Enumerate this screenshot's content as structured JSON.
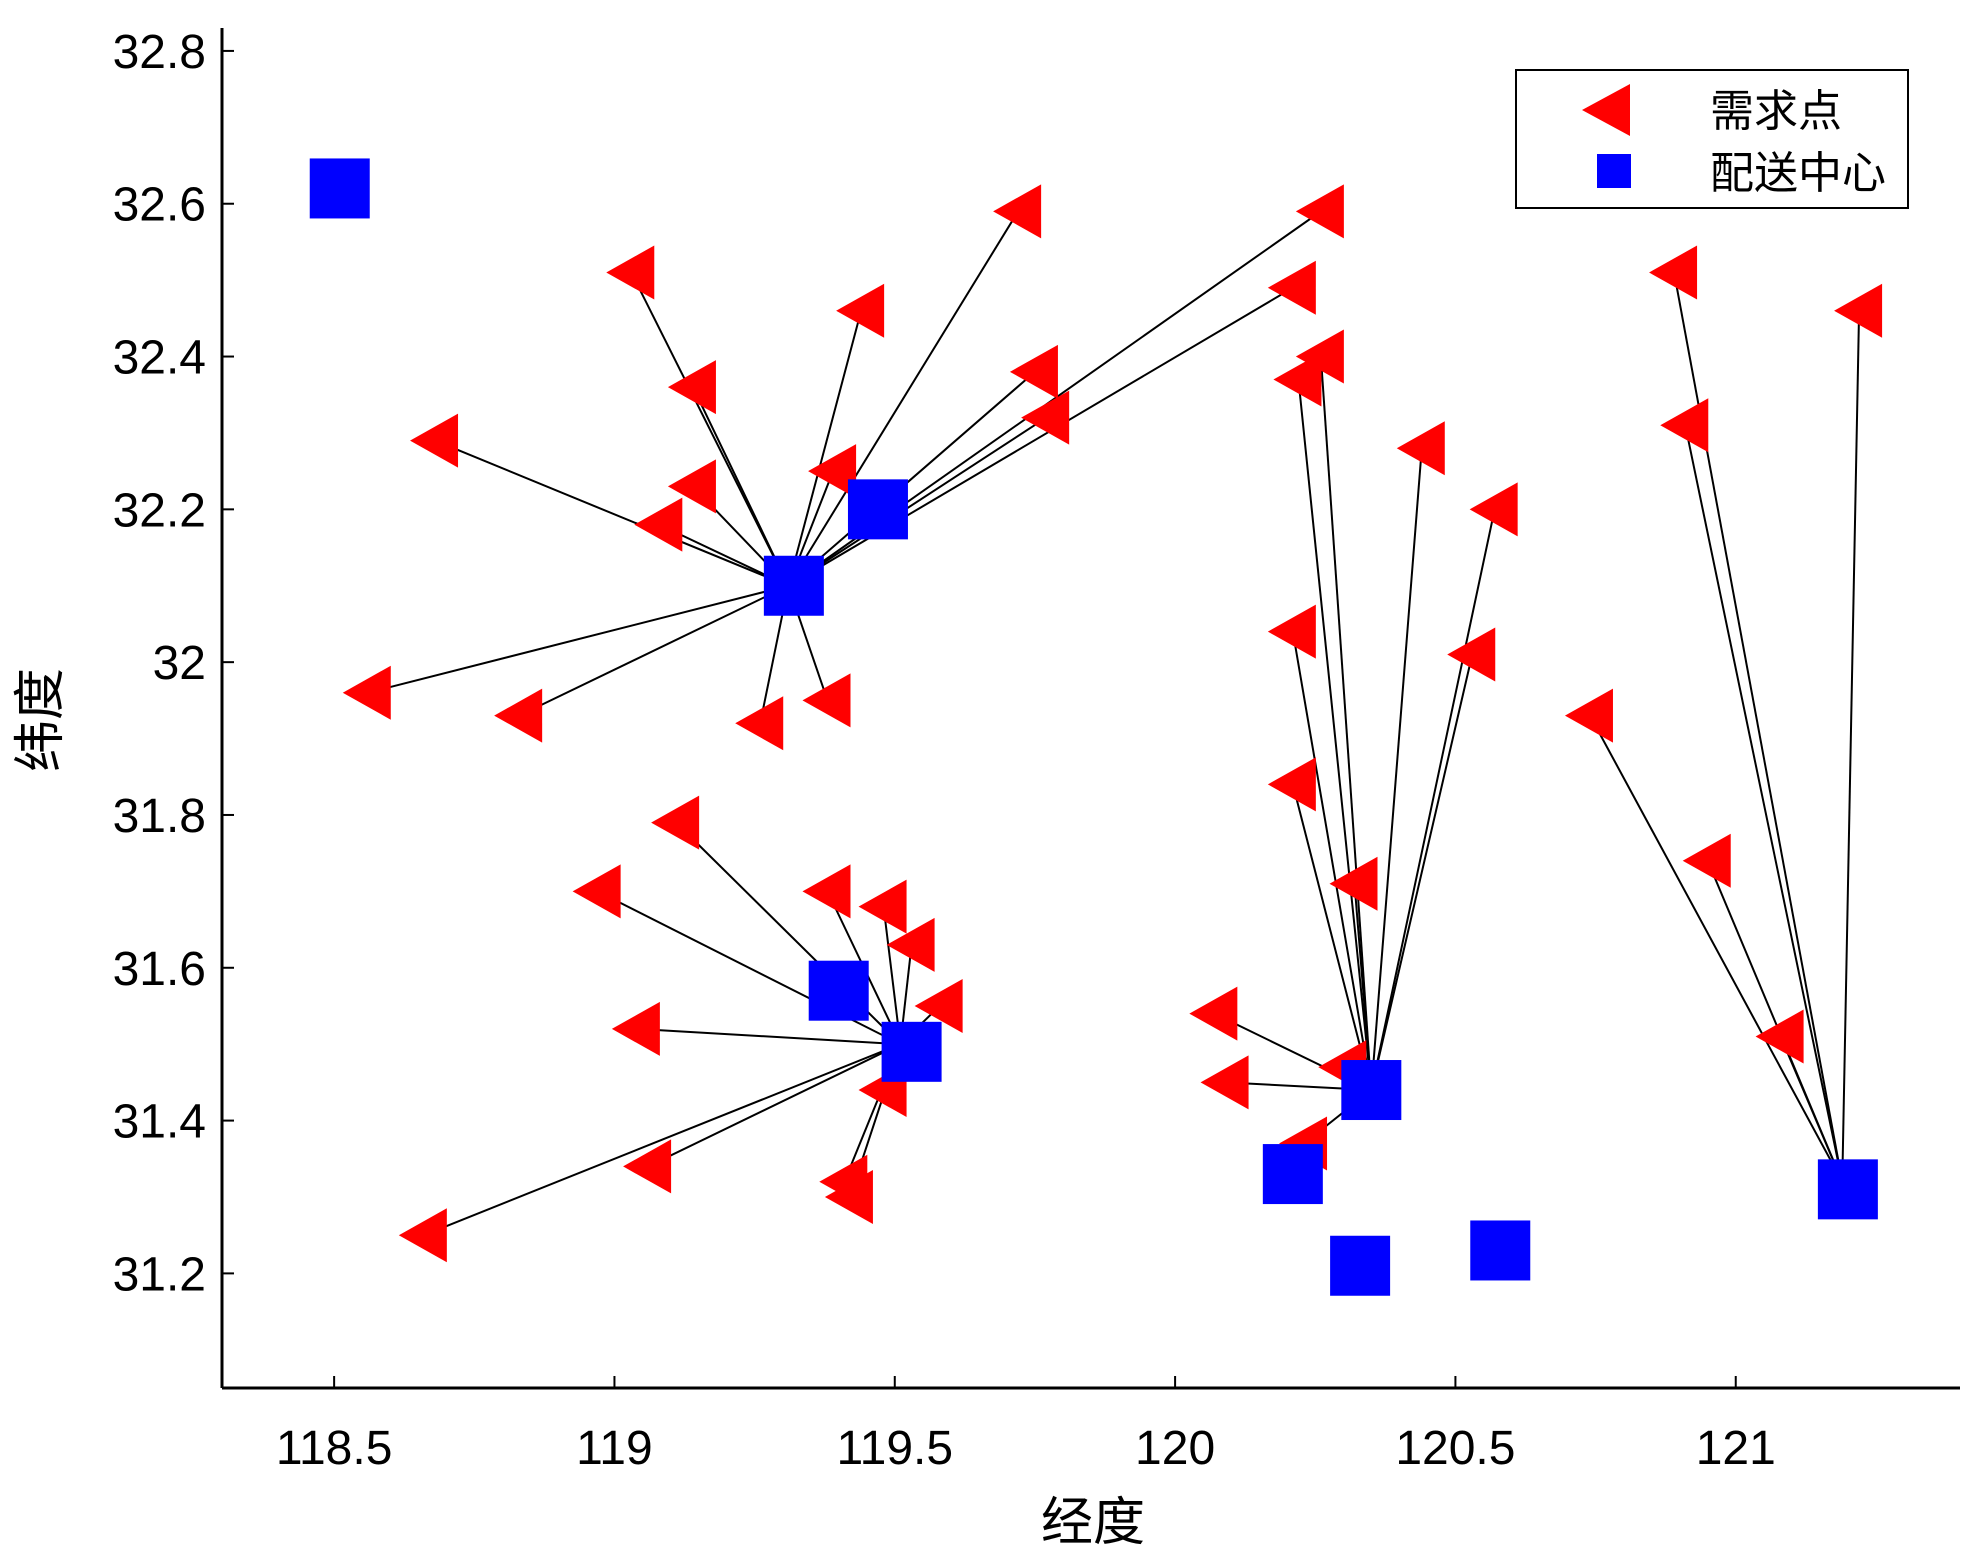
{
  "chart_data": {
    "type": "scatter",
    "xlabel": "经度",
    "ylabel": "纬度",
    "xlim": [
      118.3,
      121.4
    ],
    "ylim": [
      31.05,
      32.83
    ],
    "xticks": [
      118.5,
      119,
      119.5,
      120,
      120.5,
      121
    ],
    "xtick_labels": [
      "118.5",
      "119",
      "119.5",
      "120",
      "120.5",
      "121"
    ],
    "yticks": [
      31.2,
      31.4,
      31.6,
      31.8,
      32.0,
      32.2,
      32.4,
      32.6,
      32.8
    ],
    "ytick_labels": [
      "31.2",
      "31.4",
      "31.6",
      "31.8",
      "32",
      "32.2",
      "32.4",
      "32.6",
      "32.8"
    ],
    "legend": {
      "position": "top-right",
      "entries": [
        {
          "label": "需求点",
          "marker": "triangle-left",
          "color": "#ff0000"
        },
        {
          "label": "配送中心",
          "marker": "square",
          "color": "#0000ff"
        }
      ]
    },
    "series": [
      {
        "name": "需求点",
        "marker": "triangle-left",
        "color": "#ff0000",
        "points": [
          [
            119.03,
            32.51
          ],
          [
            119.14,
            32.36
          ],
          [
            118.68,
            32.29
          ],
          [
            119.14,
            32.23
          ],
          [
            119.08,
            32.18
          ],
          [
            119.44,
            32.46
          ],
          [
            119.72,
            32.59
          ],
          [
            119.75,
            32.38
          ],
          [
            119.77,
            32.32
          ],
          [
            119.39,
            32.25
          ],
          [
            118.56,
            31.96
          ],
          [
            118.83,
            31.93
          ],
          [
            119.26,
            31.92
          ],
          [
            119.38,
            31.95
          ],
          [
            120.26,
            32.59
          ],
          [
            120.21,
            32.49
          ],
          [
            120.26,
            32.4
          ],
          [
            120.22,
            32.37
          ],
          [
            120.44,
            32.28
          ],
          [
            120.57,
            32.2
          ],
          [
            120.21,
            32.04
          ],
          [
            120.53,
            32.01
          ],
          [
            120.21,
            31.84
          ],
          [
            120.32,
            31.71
          ],
          [
            120.07,
            31.54
          ],
          [
            120.09,
            31.45
          ],
          [
            120.3,
            31.47
          ],
          [
            120.23,
            31.37
          ],
          [
            120.74,
            31.93
          ],
          [
            120.89,
            32.51
          ],
          [
            120.91,
            32.31
          ],
          [
            120.95,
            31.74
          ],
          [
            121.08,
            31.51
          ],
          [
            121.22,
            32.46
          ],
          [
            119.11,
            31.79
          ],
          [
            118.97,
            31.7
          ],
          [
            119.38,
            31.7
          ],
          [
            119.48,
            31.68
          ],
          [
            119.53,
            31.63
          ],
          [
            119.58,
            31.55
          ],
          [
            119.04,
            31.52
          ],
          [
            119.48,
            31.44
          ],
          [
            119.06,
            31.34
          ],
          [
            119.41,
            31.32
          ],
          [
            119.42,
            31.3
          ],
          [
            118.66,
            31.25
          ]
        ]
      },
      {
        "name": "配送中心",
        "marker": "square",
        "color": "#0000ff",
        "points": [
          [
            118.51,
            32.62
          ],
          [
            119.47,
            32.2
          ],
          [
            119.32,
            32.1
          ],
          [
            119.4,
            31.57
          ],
          [
            119.53,
            31.49
          ],
          [
            120.35,
            31.44
          ],
          [
            120.21,
            31.33
          ],
          [
            120.33,
            31.21
          ],
          [
            120.58,
            31.23
          ],
          [
            121.2,
            31.31
          ]
        ]
      }
    ],
    "assignments": [
      {
        "center": [
          119.31,
          32.1
        ],
        "demands": [
          [
            119.03,
            32.51
          ],
          [
            119.14,
            32.36
          ],
          [
            118.68,
            32.29
          ],
          [
            119.14,
            32.23
          ],
          [
            119.08,
            32.18
          ],
          [
            119.44,
            32.46
          ],
          [
            119.72,
            32.59
          ],
          [
            119.75,
            32.38
          ],
          [
            119.77,
            32.32
          ],
          [
            119.39,
            32.25
          ],
          [
            120.26,
            32.59
          ],
          [
            120.21,
            32.49
          ],
          [
            118.56,
            31.96
          ],
          [
            118.83,
            31.93
          ],
          [
            119.26,
            31.92
          ],
          [
            119.38,
            31.95
          ]
        ]
      },
      {
        "center": [
          120.35,
          31.44
        ],
        "demands": [
          [
            120.26,
            32.4
          ],
          [
            120.22,
            32.37
          ],
          [
            120.44,
            32.28
          ],
          [
            120.57,
            32.2
          ],
          [
            120.21,
            32.04
          ],
          [
            120.53,
            32.01
          ],
          [
            120.21,
            31.84
          ],
          [
            120.32,
            31.71
          ],
          [
            120.07,
            31.54
          ],
          [
            120.09,
            31.45
          ],
          [
            120.3,
            31.47
          ],
          [
            120.23,
            31.37
          ]
        ]
      },
      {
        "center": [
          121.19,
          31.32
        ],
        "demands": [
          [
            120.74,
            31.93
          ],
          [
            120.89,
            32.51
          ],
          [
            120.91,
            32.31
          ],
          [
            120.95,
            31.74
          ],
          [
            121.08,
            31.51
          ],
          [
            121.22,
            32.46
          ]
        ]
      },
      {
        "center": [
          119.51,
          31.5
        ],
        "demands": [
          [
            119.11,
            31.79
          ],
          [
            118.97,
            31.7
          ],
          [
            119.38,
            31.7
          ],
          [
            119.48,
            31.68
          ],
          [
            119.53,
            31.63
          ],
          [
            119.58,
            31.55
          ],
          [
            119.04,
            31.52
          ],
          [
            119.48,
            31.44
          ],
          [
            119.06,
            31.34
          ],
          [
            119.41,
            31.32
          ],
          [
            119.42,
            31.3
          ],
          [
            118.66,
            31.25
          ]
        ]
      }
    ]
  }
}
